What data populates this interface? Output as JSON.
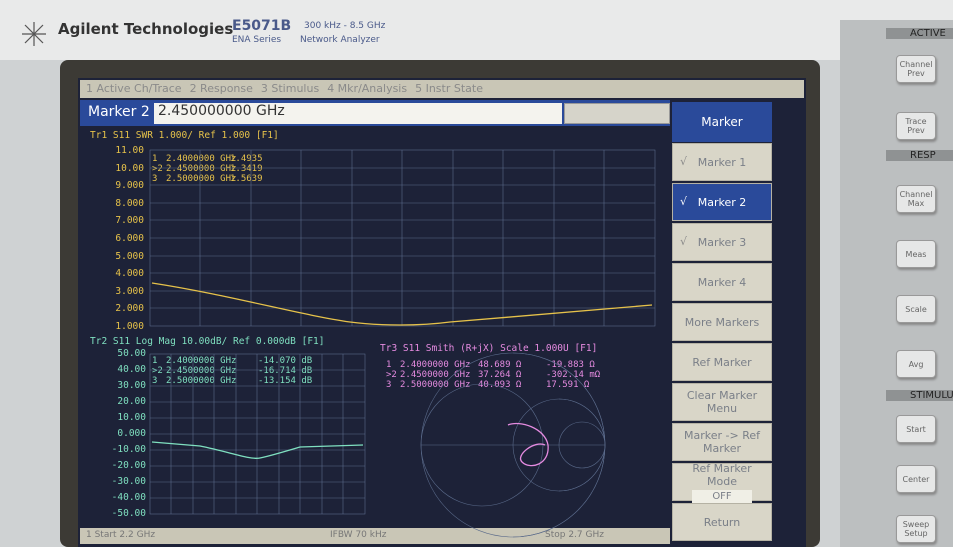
{
  "header": {
    "brand": "Agilent Technologies",
    "model": "E5071B",
    "range": "300 kHz - 8.5 GHz",
    "series": "ENA Series",
    "product": "Network Analyzer"
  },
  "menu": [
    "1 Active Ch/Trace",
    "2 Response",
    "3 Stimulus",
    "4 Mkr/Analysis",
    "5 Instr State"
  ],
  "entry": {
    "label": "Marker 2",
    "value": "2.450000000 GHz"
  },
  "softkeys": {
    "title": "Marker",
    "check": "√",
    "items": [
      {
        "label": "Marker 1",
        "checked": true
      },
      {
        "label": "Marker 2",
        "checked": true,
        "active": true
      },
      {
        "label": "Marker 3",
        "checked": true
      },
      {
        "label": "Marker 4"
      },
      {
        "label": "More Markers"
      },
      {
        "label": "Ref Marker"
      },
      {
        "label": "Clear Marker Menu"
      },
      {
        "label": "Marker -> Ref Marker"
      },
      {
        "label": "Ref Marker Mode",
        "state": "OFF"
      },
      {
        "label": "Return"
      }
    ]
  },
  "traces": [
    {
      "header": "Tr1 S11 SWR 1.000/ Ref 1.000 [F1]",
      "color": "#e6c24a",
      "yticks": [
        "11.00",
        "10.00",
        "9.000",
        "8.000",
        "7.000",
        "6.000",
        "5.000",
        "4.000",
        "3.000",
        "2.000",
        "1.000"
      ],
      "markers": [
        [
          "1",
          "2.4000000 GHz",
          "1.4935"
        ],
        [
          ">2",
          "2.4500000 GHz",
          "1.3419"
        ],
        [
          "3",
          "2.5000000 GHz",
          "1.5639"
        ]
      ]
    },
    {
      "header": "Tr2 S11 Log Mag 10.00dB/ Ref 0.000dB [F1]",
      "color": "#7fe0c0",
      "yticks": [
        "50.00",
        "40.00",
        "30.00",
        "20.00",
        "10.00",
        "0.000",
        "-10.00",
        "-20.00",
        "-30.00",
        "-40.00",
        "-50.00"
      ],
      "markers": [
        [
          "1",
          "2.4000000 GHz",
          "-14.070 dB"
        ],
        [
          ">2",
          "2.4500000 GHz",
          "-16.714 dB"
        ],
        [
          "3",
          "2.5000000 GHz",
          "-13.154 dB"
        ]
      ]
    },
    {
      "header": "Tr3 S11 Smith (R+jX) Scale 1.000U [F1]",
      "color": "#e58be0",
      "markers": [
        [
          "1",
          "2.4000000 GHz",
          "48.689 Ω",
          "-19.883 Ω"
        ],
        [
          ">2",
          "2.4500000 GHz",
          "37.264 Ω",
          "-302.14 mΩ"
        ],
        [
          "3",
          "2.5000000 GHz",
          "40.093 Ω",
          "17.591 Ω"
        ]
      ]
    }
  ],
  "status": {
    "start": "1 Start 2.2 GHz",
    "ifbw": "IFBW 70 kHz",
    "stop": "Stop 2.7 GHz"
  },
  "panel": {
    "groups": [
      {
        "title": "ACTIVE",
        "buttons": [
          "Channel Prev",
          "Trace Prev"
        ]
      },
      {
        "title": "RESP",
        "buttons": [
          "Channel Max",
          "Meas",
          "Scale",
          "Avg"
        ]
      },
      {
        "title": "STIMULUS",
        "buttons": [
          "Start",
          "Center",
          "Sweep Setup"
        ]
      }
    ]
  }
}
